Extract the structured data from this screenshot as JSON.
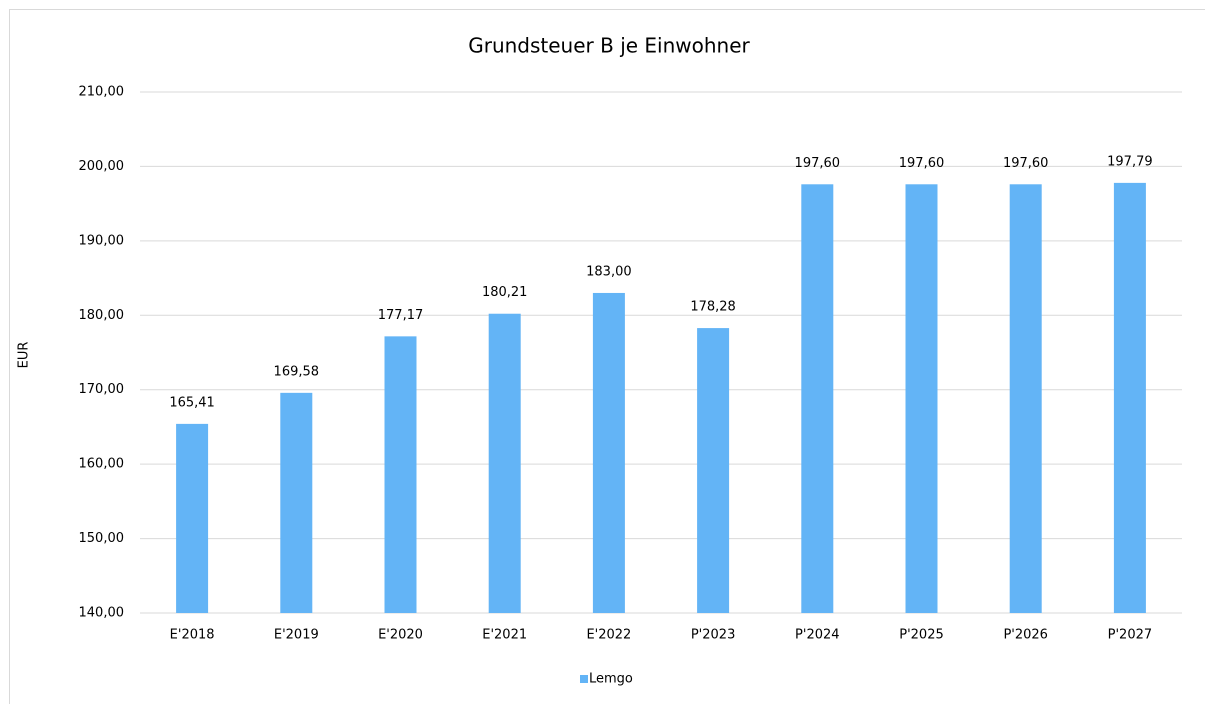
{
  "chart_data": {
    "type": "bar",
    "title": "Grundsteuer B je Einwohner",
    "y_label": "EUR",
    "categories": [
      "E'2018",
      "E'2019",
      "E'2020",
      "E'2021",
      "E'2022",
      "P'2023",
      "P'2024",
      "P'2025",
      "P'2026",
      "P'2027"
    ],
    "series": [
      {
        "name": "Lemgo",
        "color": "#63b4f6",
        "values": [
          165.41,
          169.58,
          177.17,
          180.21,
          183.0,
          178.28,
          197.6,
          197.6,
          197.6,
          197.79
        ],
        "value_labels": [
          "165,41",
          "169,58",
          "177,17",
          "180,21",
          "183,00",
          "178,28",
          "197,60",
          "197,60",
          "197,60",
          "197,79"
        ]
      }
    ],
    "ylim": [
      140,
      210
    ],
    "yticks": [
      {
        "value": 140,
        "label": "140,00"
      },
      {
        "value": 150,
        "label": "150,00"
      },
      {
        "value": 160,
        "label": "160,00"
      },
      {
        "value": 170,
        "label": "170,00"
      },
      {
        "value": 180,
        "label": "180,00"
      },
      {
        "value": 190,
        "label": "190,00"
      },
      {
        "value": 200,
        "label": "200,00"
      },
      {
        "value": 210,
        "label": "210,00"
      }
    ],
    "grid": true,
    "legend": "bottom"
  }
}
